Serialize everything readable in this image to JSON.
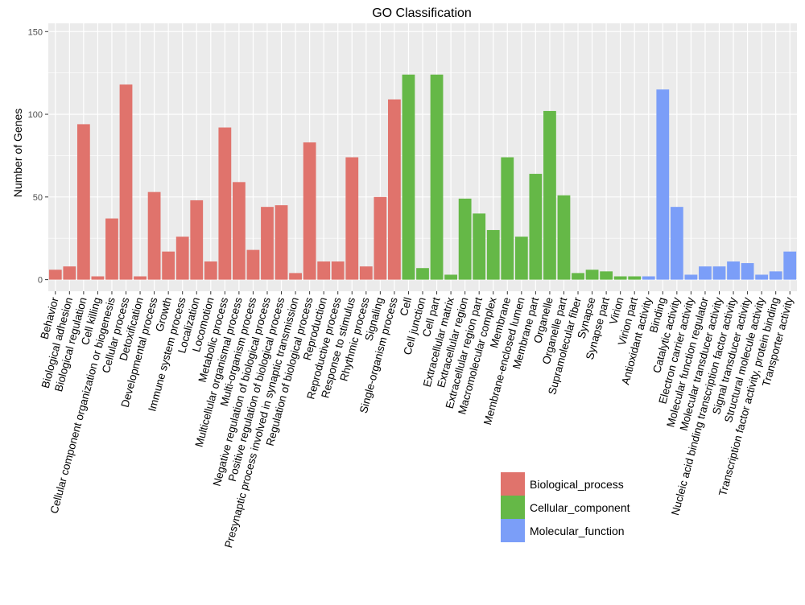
{
  "chart_data": {
    "type": "bar",
    "title": "GO Classification",
    "xlabel": "",
    "ylabel": "Number of Genes",
    "ylim": [
      -7,
      155
    ],
    "yticks": [
      0,
      50,
      100,
      150
    ],
    "grid": true,
    "legend_position": "bottom-right",
    "background_color": "#EBEBEB",
    "grid_color": "#FFFFFF",
    "groups": [
      {
        "name": "Biological_process",
        "color": "#E0736C"
      },
      {
        "name": "Cellular_component",
        "color": "#65B847"
      },
      {
        "name": "Molecular_function",
        "color": "#7B9EF8"
      }
    ],
    "categories": [
      "Behavior",
      "Biological adhesion",
      "Biological regulation",
      "Cell killing",
      "Cellular component organization or biogenesis",
      "Cellular process",
      "Detoxification",
      "Developmental process",
      "Growth",
      "Immune system process",
      "Localization",
      "Locomotion",
      "Metabolic process",
      "Multicellular organismal process",
      "Multi-organism process",
      "Negative regulation of biological process",
      "Positive regulation of biological process",
      "Presynaptic process involved in synaptic transmission",
      "Regulation of biological process",
      "Reproduction",
      "Reproductive process",
      "Response to stimulus",
      "Rhythmic process",
      "Signaling",
      "Single-organism process",
      "Cell",
      "Cell junction",
      "Cell part",
      "Extracellular matrix",
      "Extracellular region",
      "Extracellular region part",
      "Macromolecular complex",
      "Membrane",
      "Membrane-enclosed lumen",
      "Membrane part",
      "Organelle",
      "Organelle part",
      "Supramolecular fiber",
      "Synapse",
      "Synapse part",
      "Virion",
      "Virion part",
      "Antioxidant activity",
      "Binding",
      "Catalytic activity",
      "Electron carrier activity",
      "Molecular function regulator",
      "Molecular transducer activity",
      "Nucleic acid binding transcription factor activity",
      "Signal transducer activity",
      "Structural molecule activity",
      "Transcription factor activity, protein binding",
      "Transporter activity"
    ],
    "values": [
      6,
      8,
      94,
      2,
      37,
      118,
      2,
      53,
      17,
      26,
      48,
      11,
      92,
      59,
      18,
      44,
      45,
      4,
      83,
      11,
      11,
      74,
      8,
      50,
      109,
      124,
      7,
      124,
      3,
      49,
      40,
      30,
      74,
      26,
      64,
      102,
      51,
      4,
      6,
      5,
      2,
      2,
      2,
      115,
      44,
      3,
      8,
      8,
      11,
      10,
      3,
      5,
      17
    ],
    "group_index": [
      0,
      0,
      0,
      0,
      0,
      0,
      0,
      0,
      0,
      0,
      0,
      0,
      0,
      0,
      0,
      0,
      0,
      0,
      0,
      0,
      0,
      0,
      0,
      0,
      0,
      1,
      1,
      1,
      1,
      1,
      1,
      1,
      1,
      1,
      1,
      1,
      1,
      1,
      1,
      1,
      1,
      1,
      2,
      2,
      2,
      2,
      2,
      2,
      2,
      2,
      2,
      2,
      2
    ]
  }
}
